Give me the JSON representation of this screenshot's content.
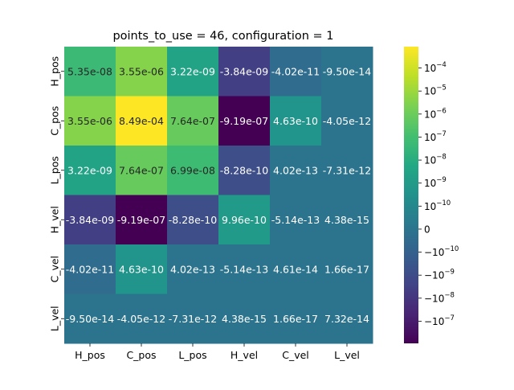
{
  "chart_data": {
    "type": "heatmap",
    "title": "points_to_use = 46, configuration = 1",
    "xlabel": "",
    "ylabel": "",
    "x_categories": [
      "H_pos",
      "C_pos",
      "L_pos",
      "H_vel",
      "C_vel",
      "L_vel"
    ],
    "y_categories": [
      "H_pos",
      "C_pos",
      "L_pos",
      "H_vel",
      "C_vel",
      "L_vel"
    ],
    "values": [
      [
        5.35e-08,
        3.55e-06,
        3.22e-09,
        -3.84e-09,
        -4.02e-11,
        -9.5e-14
      ],
      [
        3.55e-06,
        0.000849,
        7.64e-07,
        -9.19e-07,
        4.63e-10,
        -4.05e-12
      ],
      [
        3.22e-09,
        7.64e-07,
        6.99e-08,
        -8.28e-10,
        4.02e-13,
        -7.31e-12
      ],
      [
        -3.84e-09,
        -9.19e-07,
        -8.28e-10,
        9.96e-10,
        -5.14e-13,
        4.38e-15
      ],
      [
        -4.02e-11,
        4.63e-10,
        4.02e-13,
        -5.14e-13,
        4.61e-14,
        1.66e-17
      ],
      [
        -9.5e-14,
        -4.05e-12,
        -7.31e-12,
        4.38e-15,
        1.66e-17,
        7.32e-14
      ]
    ],
    "cell_labels": [
      [
        "5.35e-08",
        "3.55e-06",
        "3.22e-09",
        "-3.84e-09",
        "-4.02e-11",
        "-9.50e-14"
      ],
      [
        "3.55e-06",
        "8.49e-04",
        "7.64e-07",
        "-9.19e-07",
        "4.63e-10",
        "-4.05e-12"
      ],
      [
        "3.22e-09",
        "7.64e-07",
        "6.99e-08",
        "-8.28e-10",
        "4.02e-13",
        "-7.31e-12"
      ],
      [
        "-3.84e-09",
        "-9.19e-07",
        "-8.28e-10",
        "9.96e-10",
        "-5.14e-13",
        "4.38e-15"
      ],
      [
        "-4.02e-11",
        "4.63e-10",
        "4.02e-13",
        "-5.14e-13",
        "4.61e-14",
        "1.66e-17"
      ],
      [
        "-9.50e-14",
        "-4.05e-12",
        "-7.31e-12",
        "4.38e-15",
        "1.66e-17",
        "7.32e-14"
      ]
    ],
    "colormap": "viridis",
    "color_scale": "symlog",
    "colorbar_ticks": [
      {
        "exp": -4,
        "sign": 1
      },
      {
        "exp": -5,
        "sign": 1
      },
      {
        "exp": -6,
        "sign": 1
      },
      {
        "exp": -7,
        "sign": 1
      },
      {
        "exp": -8,
        "sign": 1
      },
      {
        "exp": -9,
        "sign": 1
      },
      {
        "exp": -10,
        "sign": 1
      },
      {
        "exp": null,
        "sign": 0
      },
      {
        "exp": -10,
        "sign": -1
      },
      {
        "exp": -9,
        "sign": -1
      },
      {
        "exp": -8,
        "sign": -1
      },
      {
        "exp": -7,
        "sign": -1
      }
    ],
    "colorbar_labels": [
      "10",
      "10",
      "10",
      "10",
      "10",
      "10",
      "10",
      "0",
      "−10",
      "−10",
      "−10",
      "−10"
    ],
    "colorbar_exponents": [
      "−4",
      "−5",
      "−6",
      "−7",
      "−8",
      "−9",
      "−10",
      "",
      "−10",
      "−9",
      "−8",
      "−7"
    ],
    "grid": false,
    "legend": "colorbar right"
  }
}
